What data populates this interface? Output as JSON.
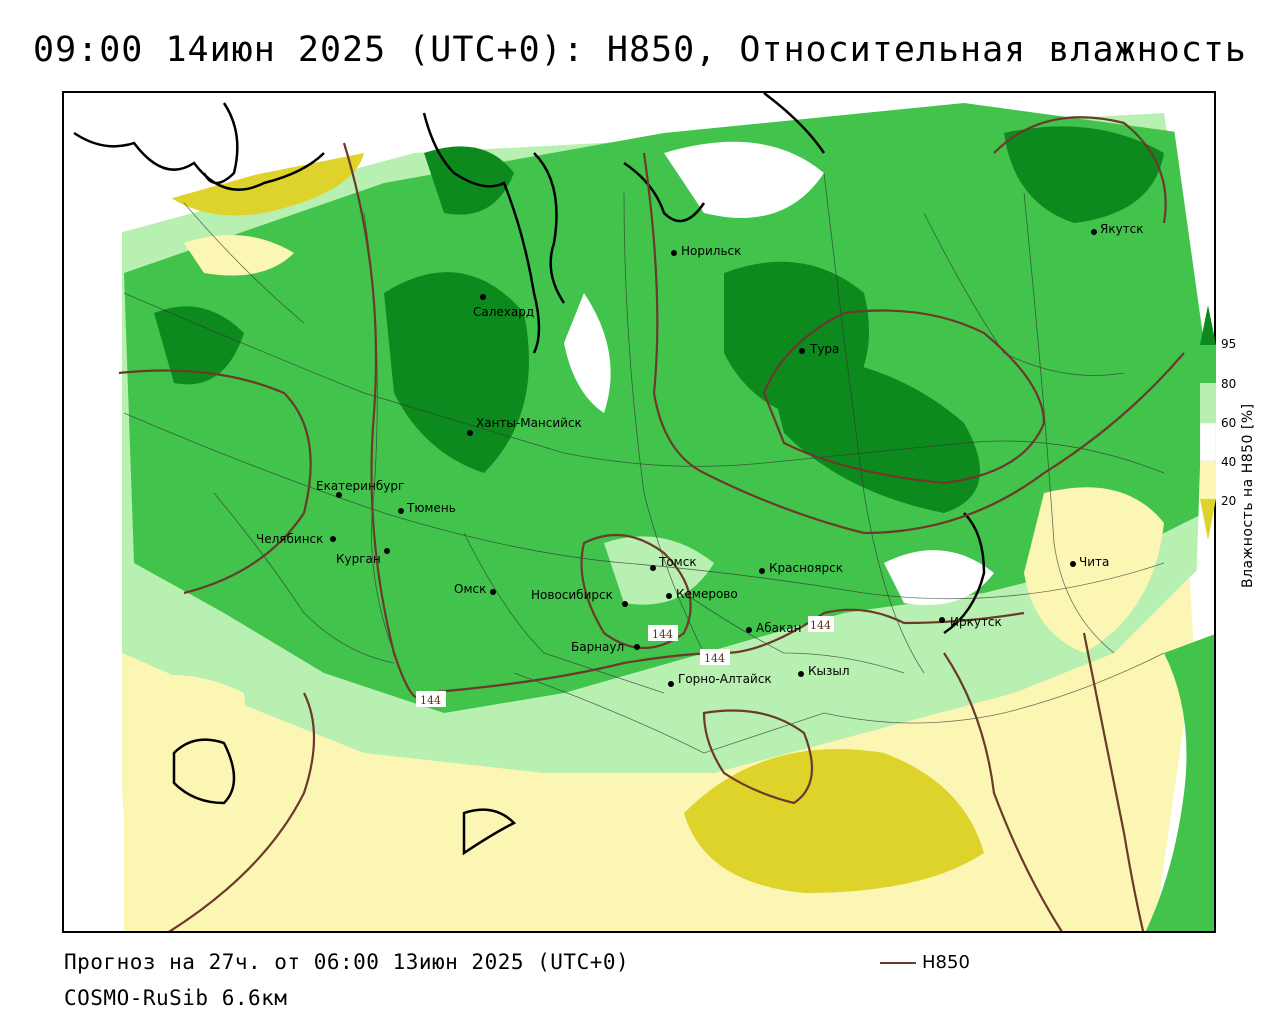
{
  "header": {
    "title": "09:00 14июн 2025 (UTC+0): H850, Относительная влажность"
  },
  "footer": {
    "forecast": "Прогноз на 27ч. от 06:00 13июн 2025 (UTC+0)",
    "model": "COSMO-RuSib 6.6км"
  },
  "legend": {
    "line_label": "H850",
    "line_color": "#6b3a2a"
  },
  "colorbar": {
    "axis_label": "Влажность на H850 [%]",
    "ticks": [
      "95",
      "80",
      "60",
      "40",
      "20"
    ],
    "colors": {
      "dark_green": "#0c8a1d",
      "green": "#41c34c",
      "light_green": "#b7f0b0",
      "white": "#ffffff",
      "light_yellow": "#fbf6b4",
      "yellow": "#ddd32a"
    }
  },
  "map": {
    "isoline_labels": [
      "144",
      "144",
      "144",
      "144"
    ],
    "cities": [
      {
        "name": "Якутск"
      },
      {
        "name": "Норильск"
      },
      {
        "name": "Салехард"
      },
      {
        "name": "Тура"
      },
      {
        "name": "Ханты-Мансийск"
      },
      {
        "name": "Екатеринбург"
      },
      {
        "name": "Тюмень"
      },
      {
        "name": "Челябинск"
      },
      {
        "name": "Курган"
      },
      {
        "name": "Омск"
      },
      {
        "name": "Новосибирск"
      },
      {
        "name": "Томск"
      },
      {
        "name": "Кемерово"
      },
      {
        "name": "Красноярск"
      },
      {
        "name": "Барнаул"
      },
      {
        "name": "Абакан"
      },
      {
        "name": "Иркутск"
      },
      {
        "name": "Горно-Алтайск"
      },
      {
        "name": "Кызыл"
      },
      {
        "name": "Чита"
      }
    ]
  }
}
